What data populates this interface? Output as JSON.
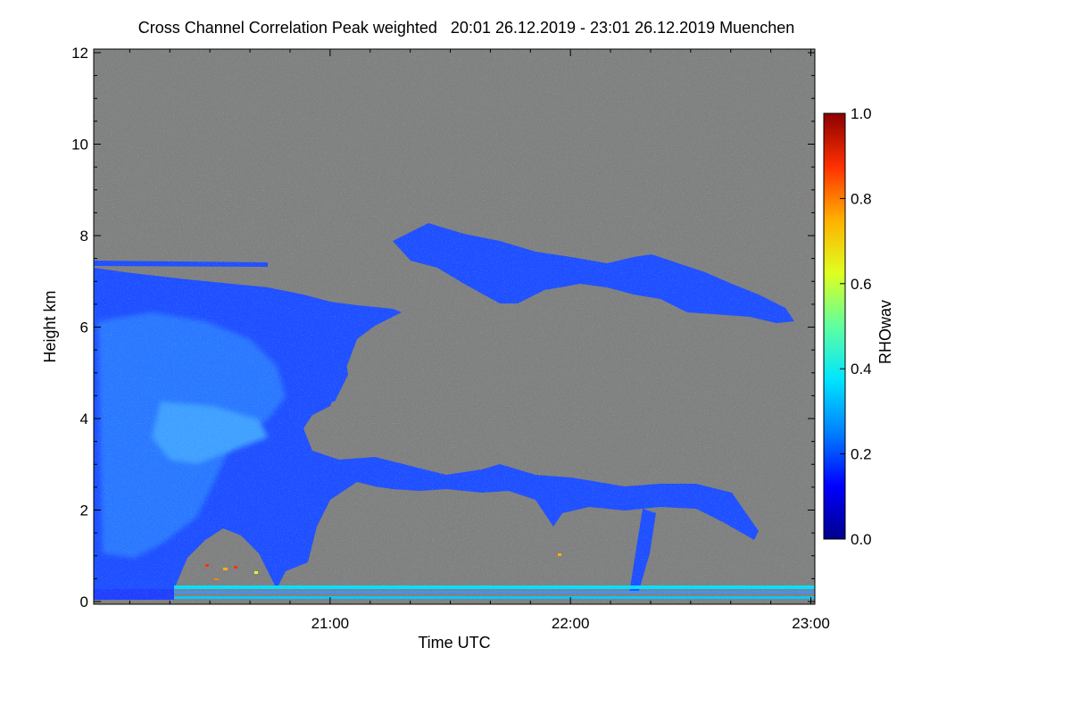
{
  "chart_data": {
    "type": "heatmap",
    "title": "Cross Channel Correlation Peak weighted   20:01 26.12.2019 - 23:01 26.12.2019 Muenchen",
    "xlabel": "Time UTC",
    "ylabel": "Height km",
    "x_time_range": [
      "20:01",
      "23:01"
    ],
    "x_ticks": [
      "21:00",
      "22:00",
      "23:00"
    ],
    "ylim": [
      0,
      12
    ],
    "y_ticks": [
      "0",
      "2",
      "4",
      "6",
      "8",
      "10",
      "12"
    ],
    "colorbar": {
      "label": "RHOwav",
      "range": [
        0.0,
        1.0
      ],
      "ticks": [
        "0.0",
        "0.2",
        "0.4",
        "0.6",
        "0.8",
        "1.0"
      ],
      "colors": [
        "#00008b",
        "#0000ff",
        "#0080ff",
        "#00e5ff",
        "#5fff9f",
        "#dfff1f",
        "#ffb000",
        "#ff3000",
        "#8b0000"
      ]
    },
    "background_color": "#808080",
    "features": [
      {
        "name": "low-level layer",
        "time": [
          "20:01",
          "23:01"
        ],
        "height_km": [
          0.0,
          0.3
        ],
        "rho": 0.15
      },
      {
        "name": "main cloud mass",
        "time": [
          "20:01",
          "21:00"
        ],
        "height_km": [
          0.2,
          7.5
        ],
        "rho": 0.3
      },
      {
        "name": "mid-level band",
        "time": [
          "20:58",
          "22:47"
        ],
        "height_km": [
          1.5,
          4.0
        ],
        "rho": 0.2
      },
      {
        "name": "upper layer",
        "time": [
          "20:01",
          "23:01"
        ],
        "height_km": [
          6.0,
          8.3
        ],
        "rho": 0.15
      }
    ]
  }
}
